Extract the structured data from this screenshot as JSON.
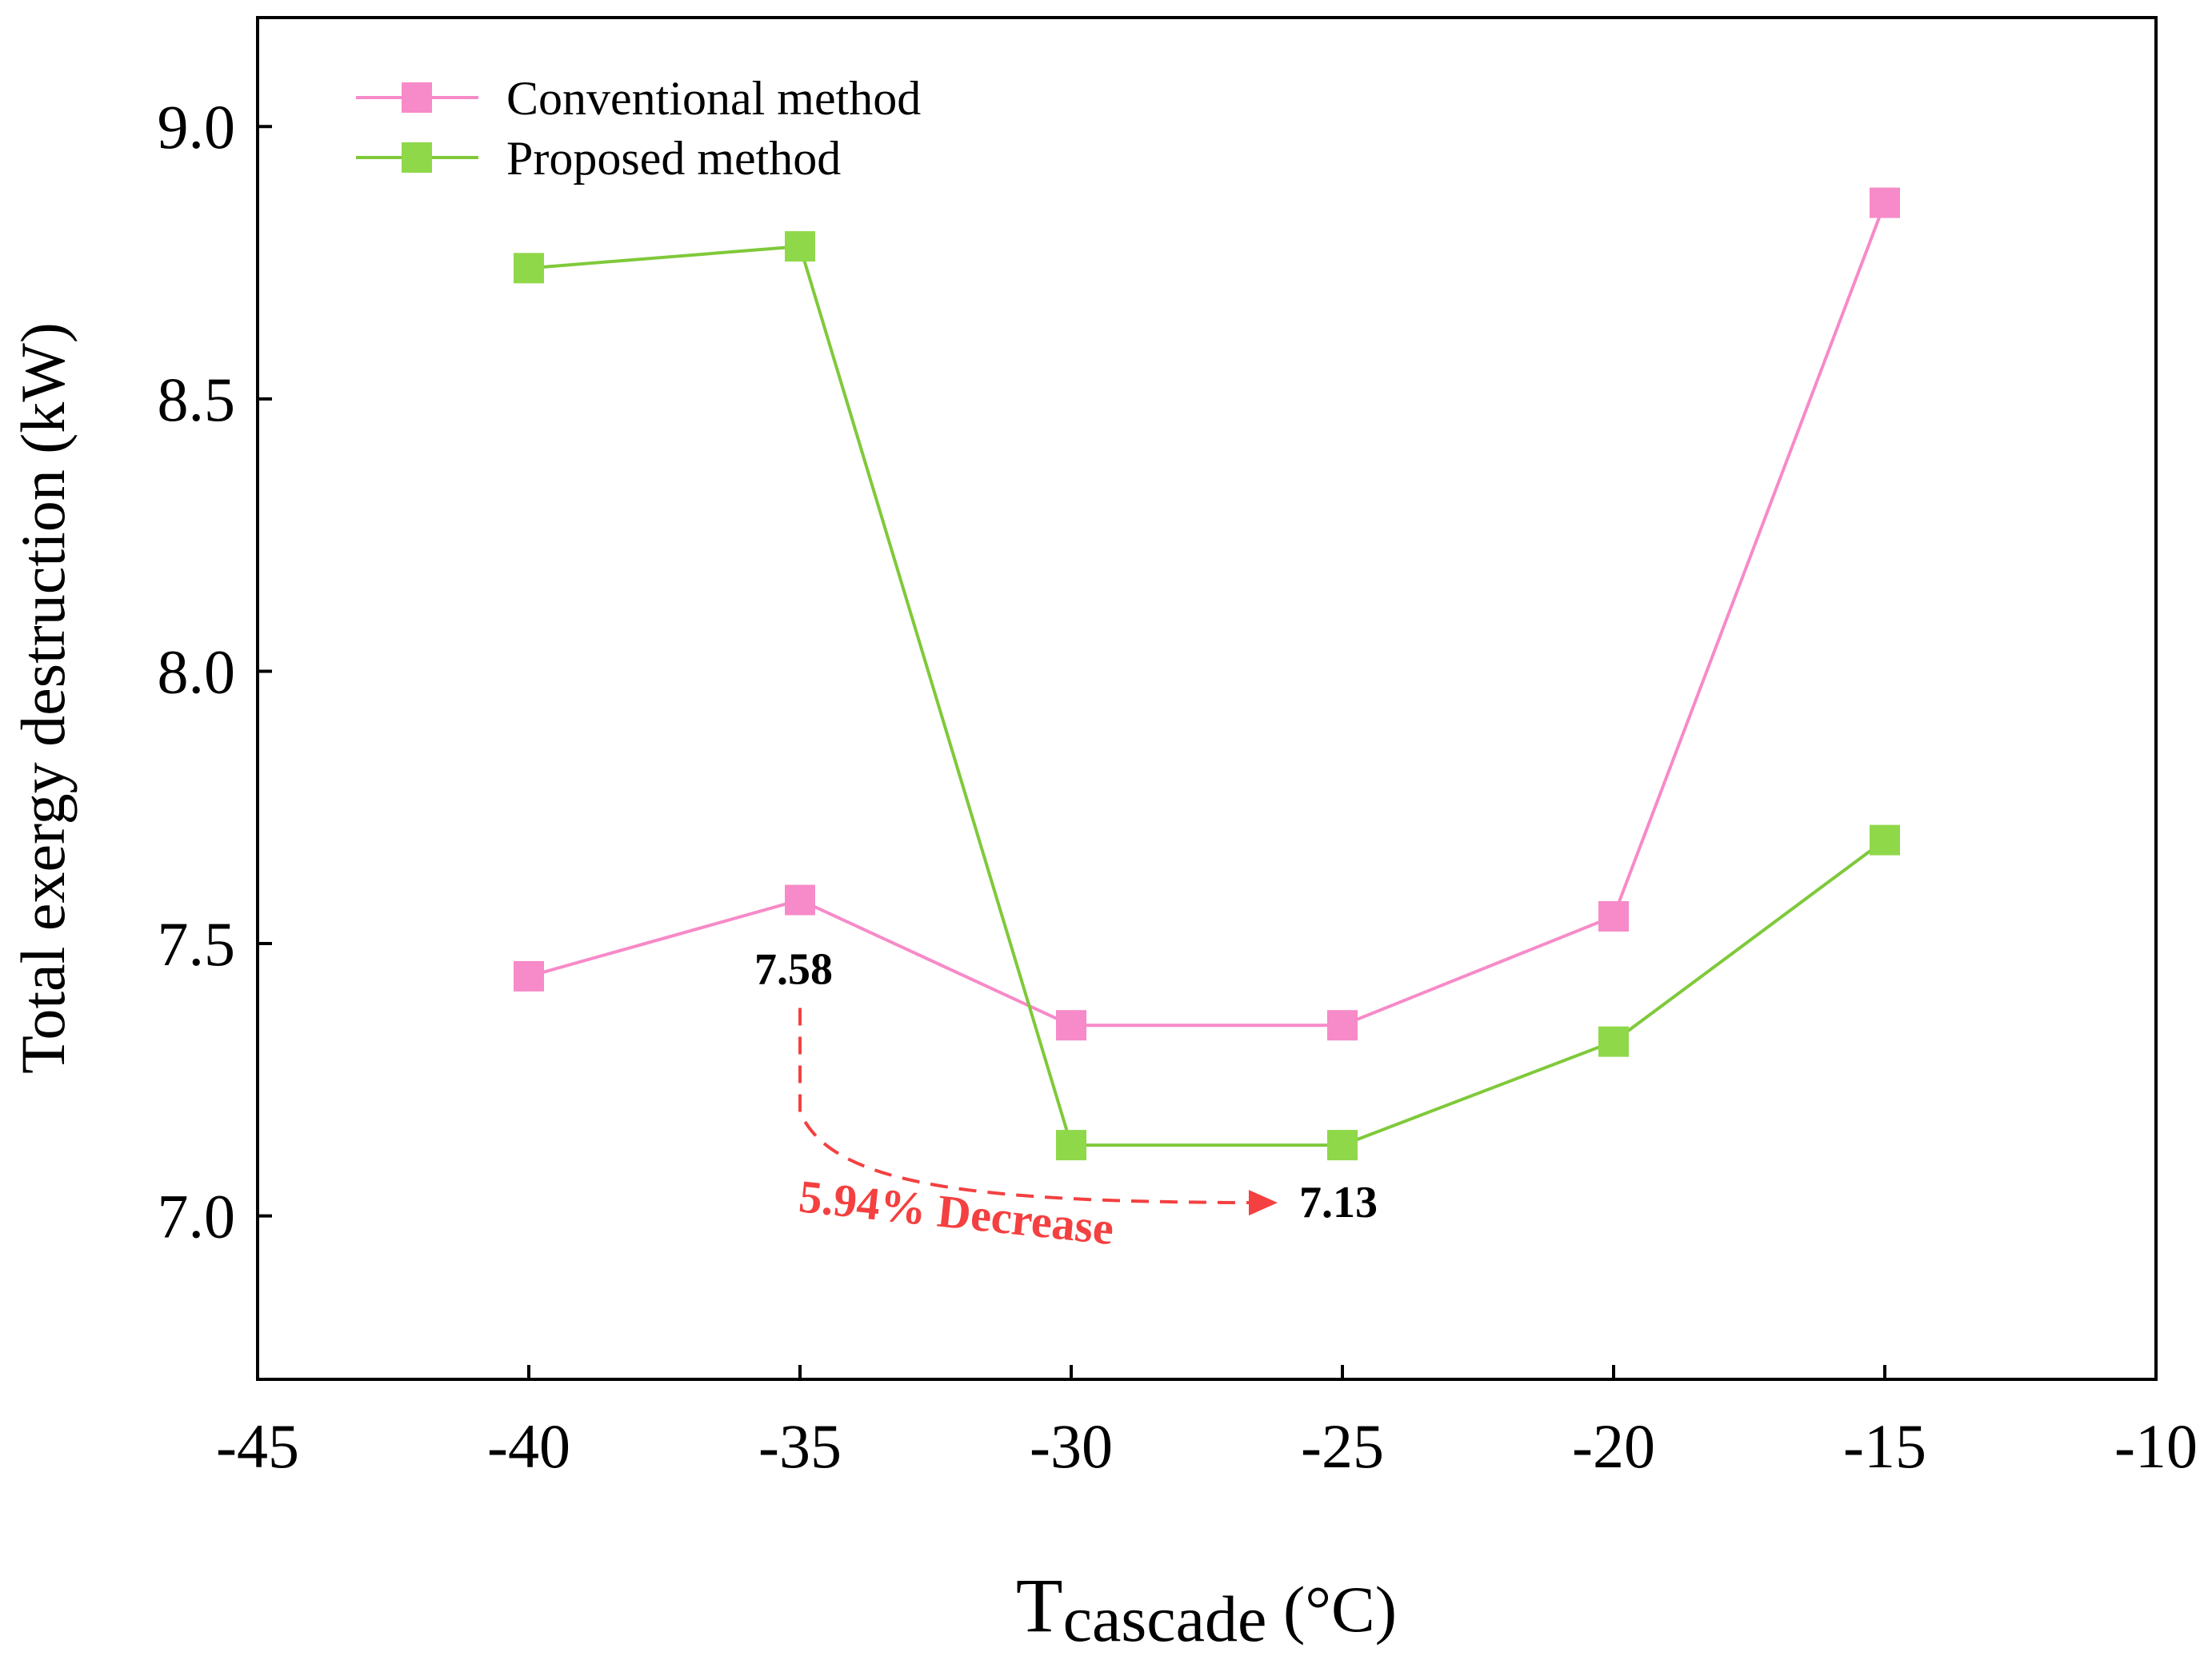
{
  "chart_data": {
    "type": "line",
    "xlabel_main": "T",
    "xlabel_sub": "cascade",
    "xlabel_unit": " (°C)",
    "ylabel": "Total exergy destruction (kW)",
    "xlim": [
      -45,
      -10
    ],
    "ylim": [
      6.7,
      9.2
    ],
    "x_ticks": [
      -45,
      -40,
      -35,
      -30,
      -25,
      -20,
      -15,
      -10
    ],
    "x_tick_labels": [
      "-45",
      "-40",
      "-35",
      "-30",
      "-25",
      "-20",
      "-15",
      "-10"
    ],
    "y_ticks": [
      7.0,
      7.5,
      8.0,
      8.5,
      9.0
    ],
    "y_tick_labels": [
      "7.0",
      "7.5",
      "8.0",
      "8.5",
      "9.0"
    ],
    "legend_position": "top-left",
    "grid": false,
    "x": [
      -40,
      -35,
      -30,
      -25,
      -20,
      -15
    ],
    "series": [
      {
        "name": "Conventional method",
        "color": "#f78ac8",
        "marker_color": "#f78ac8",
        "values": [
          7.44,
          7.58,
          7.35,
          7.35,
          7.55,
          8.86
        ]
      },
      {
        "name": "Proposed method",
        "color": "#7fc93a",
        "marker_color": "#8fd84a",
        "values": [
          8.74,
          8.78,
          7.13,
          7.13,
          7.32,
          7.69
        ]
      }
    ],
    "annotations": {
      "value_high": {
        "text": "7.58",
        "x": -35,
        "y": 7.58
      },
      "value_low": {
        "text": "7.13",
        "x": -25,
        "y": 7.13
      },
      "decrease": {
        "text": "5.94% Decrease",
        "color": "#f44040"
      }
    }
  }
}
